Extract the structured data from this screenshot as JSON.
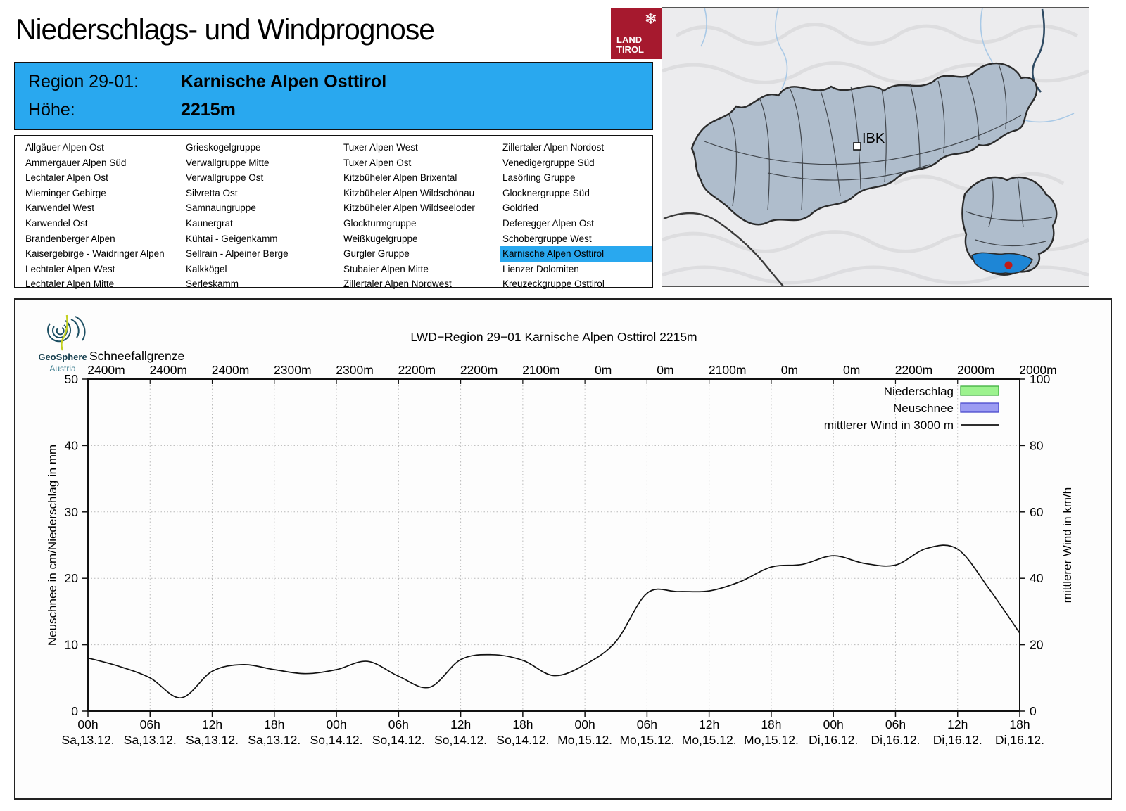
{
  "page": {
    "title": "Niederschlags- und Windprognose"
  },
  "land_tirol_logo": {
    "line1": "LAND",
    "line2": "TIROL",
    "emblem": "snowflake-eagle",
    "color": "#a6192e"
  },
  "region_banner": {
    "region_label": "Region 29-01:",
    "region_name": "Karnische Alpen Osttirol",
    "altitude_label": "Höhe:",
    "altitude_value": "2215m",
    "background": "#29a8ef"
  },
  "region_list": {
    "selected": "Karnische Alpen Osttirol",
    "highlight_color": "#29a8ef",
    "columns": [
      [
        "Allgäuer Alpen Ost",
        "Ammergauer Alpen Süd",
        "Lechtaler Alpen Ost",
        "Mieminger Gebirge",
        "Karwendel West",
        "Karwendel Ost",
        "Brandenberger Alpen",
        "Kaisergebirge - Waidringer Alpen",
        "Lechtaler Alpen West",
        "Lechtaler Alpen Mitte"
      ],
      [
        "Grieskogelgruppe",
        "Verwallgruppe Mitte",
        "Verwallgruppe Ost",
        "Silvretta Ost",
        "Samnaungruppe",
        "Kaunergrat",
        "Kühtai - Geigenkamm",
        "Sellrain - Alpeiner Berge",
        "Kalkkögel",
        "Serleskamm"
      ],
      [
        "Tuxer Alpen West",
        "Tuxer Alpen Ost",
        "Kitzbüheler Alpen Brixental",
        "Kitzbüheler Alpen Wildschönau",
        "Kitzbüheler Alpen Wildseeloder",
        "Glockturmgruppe",
        "Weißkugelgruppe",
        "Gurgler Gruppe",
        "Stubaier Alpen Mitte",
        "Zillertaler Alpen Nordwest"
      ],
      [
        "Zillertaler Alpen Nordost",
        "Venedigergruppe Süd",
        "Lasörling Gruppe",
        "Glocknergruppe Süd",
        "Goldried",
        "Deferegger Alpen Ost",
        "Schobergruppe West",
        "Karnische Alpen Osttirol",
        "Lienzer Dolomiten",
        "Kreuzeckgruppe Osttirol"
      ]
    ]
  },
  "map": {
    "city_label": "IBK",
    "region_fill": "#afbdcc",
    "highlight_fill": "#1e86d6",
    "marker_color": "#c11b17"
  },
  "geosphere_logo": {
    "name": "GeoSphere",
    "sub": "Austria"
  },
  "chart_data": {
    "type": "line",
    "title": "LWD−Region 29−01 Karnische Alpen Osttirol 2215m",
    "snowline": {
      "label": "Schneefallgrenze",
      "values": [
        "2400m",
        "2400m",
        "2400m",
        "2300m",
        "2300m",
        "2200m",
        "2200m",
        "2100m",
        "0m",
        "0m",
        "2100m",
        "0m",
        "0m",
        "2200m",
        "2000m",
        "2000m"
      ]
    },
    "x": {
      "tick_times": [
        "00h",
        "06h",
        "12h",
        "18h",
        "00h",
        "06h",
        "12h",
        "18h",
        "00h",
        "06h",
        "12h",
        "18h",
        "00h",
        "06h",
        "12h",
        "18h"
      ],
      "tick_dates": [
        "Sa,13.12.",
        "Sa,13.12.",
        "Sa,13.12.",
        "Sa,13.12.",
        "So,14.12.",
        "So,14.12.",
        "So,14.12.",
        "So,14.12.",
        "Mo,15.12.",
        "Mo,15.12.",
        "Mo,15.12.",
        "Mo,15.12.",
        "Di,16.12.",
        "Di,16.12.",
        "Di,16.12.",
        "Di,16.12."
      ],
      "span_hours": 90
    },
    "y_left": {
      "label": "Neuschnee in cm/Niederschlag in mm",
      "min": 0,
      "max": 50,
      "tick_step": 10
    },
    "y_right": {
      "label": "mittlerer Wind in km/h",
      "min": 0,
      "max": 100,
      "tick_step": 20
    },
    "legend": [
      {
        "label": "Niederschlag",
        "type": "box",
        "fill": "#9cf28e",
        "border": "#3fae3f"
      },
      {
        "label": "Neuschnee",
        "type": "box",
        "fill": "#9c9cf2",
        "border": "#4949cc"
      },
      {
        "label": "mittlerer Wind in 3000 m",
        "type": "line",
        "color": "#111111"
      }
    ],
    "series": {
      "wind_kmh": {
        "name": "mittlerer Wind in 3000 m",
        "x_hours_step": 3,
        "values": [
          16,
          13.5,
          10,
          4,
          12,
          14,
          12.5,
          11.3,
          12.5,
          15,
          10.5,
          7.2,
          15.5,
          17,
          15.3,
          10.7,
          14,
          21,
          35.5,
          36,
          36.2,
          39,
          43.4,
          44.2,
          46.8,
          44.5,
          44,
          49,
          48.8,
          37,
          23.5
        ]
      },
      "niederschlag_mm": {
        "name": "Niederschlag",
        "values": [
          0,
          0,
          0,
          0,
          0,
          0,
          0,
          0,
          0,
          0,
          0,
          0,
          0,
          0,
          0,
          0
        ]
      },
      "neuschnee_cm": {
        "name": "Neuschnee",
        "values": [
          0,
          0,
          0,
          0,
          0,
          0,
          0,
          0,
          0,
          0,
          0,
          0,
          0,
          0,
          0,
          0
        ]
      }
    },
    "grid": true,
    "legend_position": "top-right"
  }
}
